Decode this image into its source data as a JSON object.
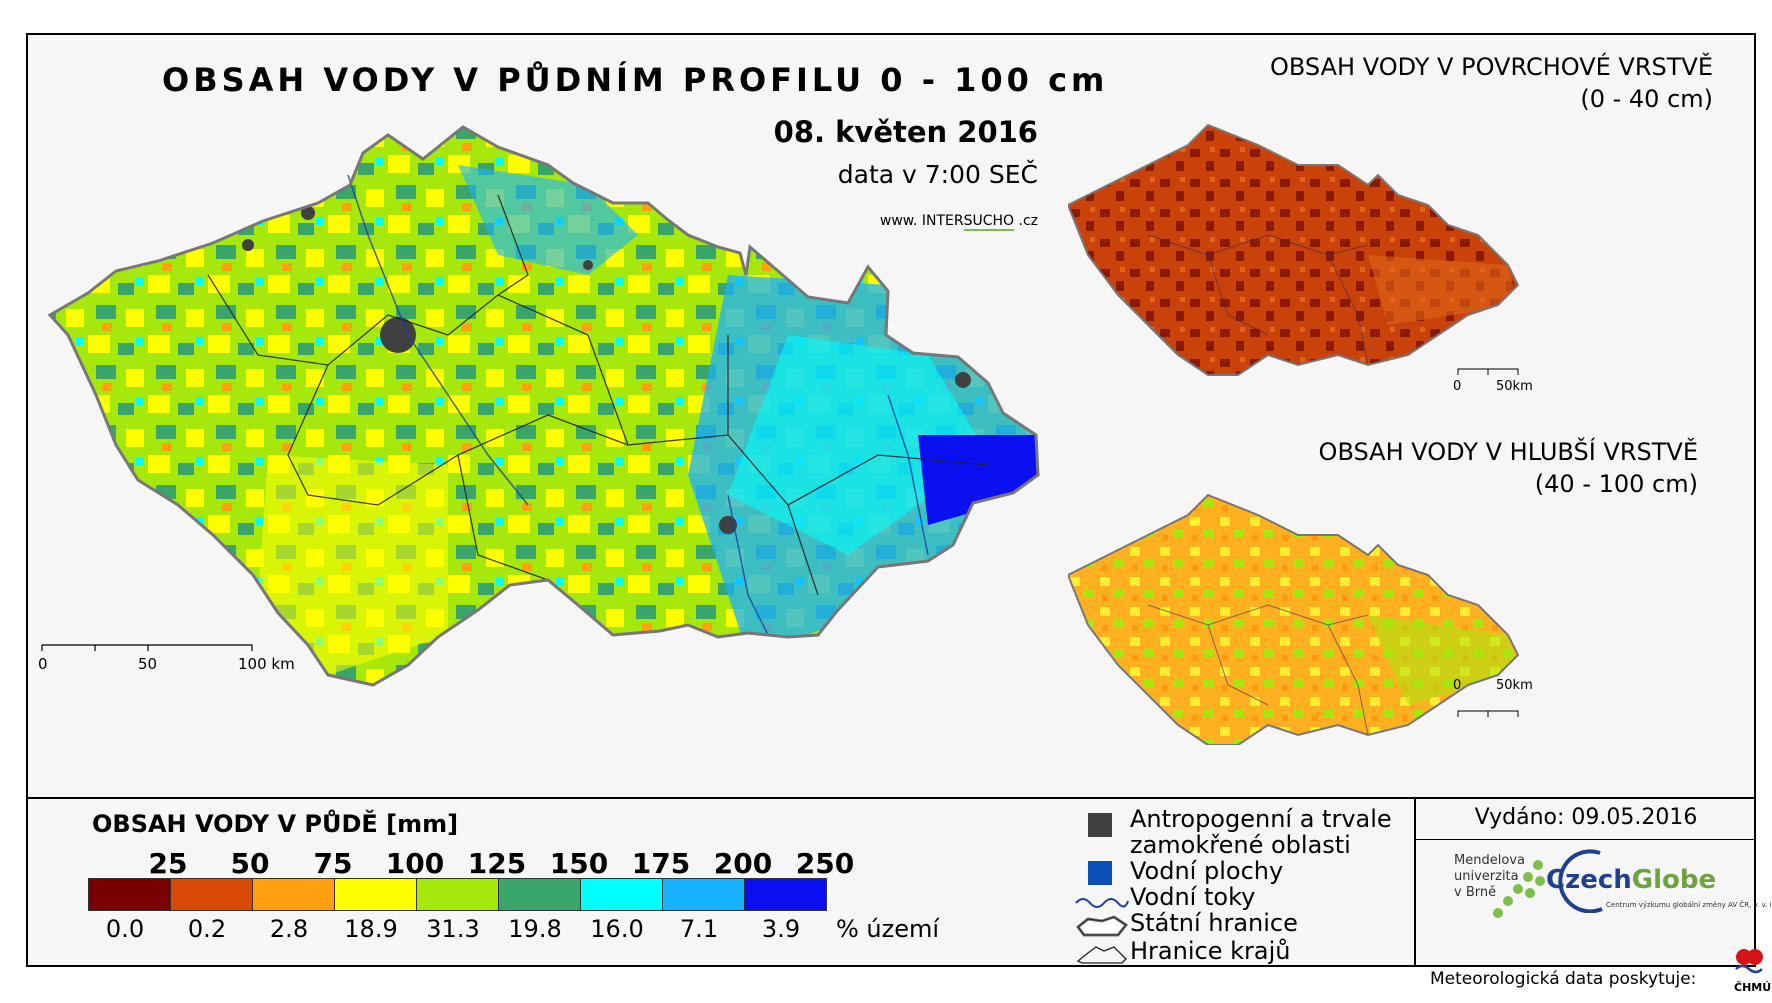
{
  "main_title": "OBSAH VODY V PŮDNÍM PROFILU 0 - 100 cm",
  "date": "08. květen 2016",
  "time": "data v 7:00 SEČ",
  "website": {
    "prefix": "www.",
    "inter": "INTER",
    "sucho": "SUCHO",
    "suffix": ".cz"
  },
  "surface": {
    "title": "OBSAH VODY V POVRCHOVÉ VRSTVĚ",
    "range": "(0 - 40 cm)"
  },
  "deep": {
    "title": "OBSAH VODY V HLUBŠÍ VRSTVĚ",
    "range": "(40 - 100 cm)"
  },
  "main_scale": {
    "l0": "0",
    "l1": "50",
    "l2": "100 km"
  },
  "small_scale": {
    "l0": "0",
    "l1": "50km"
  },
  "legend": {
    "title": "OBSAH VODY V PŮDĚ [mm]",
    "ticks": [
      "25",
      "50",
      "75",
      "100",
      "125",
      "150",
      "175",
      "200",
      "250"
    ],
    "colors": [
      "#7a0000",
      "#d84a06",
      "#ffa010",
      "#ffff00",
      "#a6e80c",
      "#3aa56a",
      "#00ffff",
      "#19b2ff",
      "#0a10f0"
    ],
    "percentages": [
      "0.0",
      "0.2",
      "2.8",
      "18.9",
      "31.3",
      "19.8",
      "16.0",
      "7.1",
      "3.9"
    ],
    "pct_unit": "% území"
  },
  "symbols": {
    "anthro_1": "Antropogenní a trvale",
    "anthro_2": "zamokřené oblasti",
    "water": "Vodní plochy",
    "rivers": "Vodní toky",
    "border": "Státní hranice",
    "regions": "Hranice krajů",
    "anthro_color": "#404040",
    "water_color": "#0a4fb5",
    "river_color": "#1f3f9f"
  },
  "issued": "Vydáno: 09.05.2016",
  "mendel": {
    "l1": "Mendelova",
    "l2": "univerzita",
    "l3": "v Brně"
  },
  "czechglobe": {
    "czech": "Czech",
    "globe": "Globe",
    "sub": "Centrum výzkumu globální změny AV ČR, v. v. i."
  },
  "meteo": "Meteorologická data poskytuje:",
  "chmu": "ČHMÚ"
}
